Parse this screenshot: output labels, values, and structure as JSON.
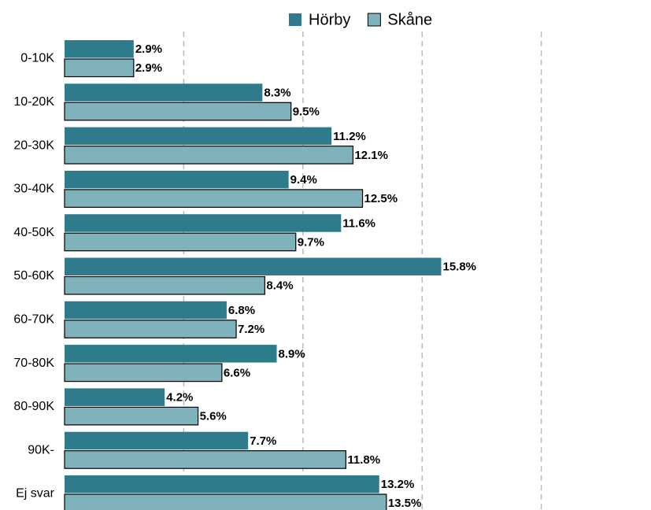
{
  "chart_data": {
    "type": "bar",
    "orientation": "horizontal",
    "categories": [
      "0-10K",
      "10-20K",
      "20-30K",
      "30-40K",
      "40-50K",
      "50-60K",
      "60-70K",
      "70-80K",
      "80-90K",
      "90K-",
      "Ej svar"
    ],
    "series": [
      {
        "name": "Hörby",
        "color": "#2e7b8c",
        "values": [
          2.9,
          8.3,
          11.2,
          9.4,
          11.6,
          15.8,
          6.8,
          8.9,
          4.2,
          7.7,
          13.2
        ],
        "value_labels": [
          "2.9%",
          "8.3%",
          "11.2%",
          "9.4%",
          "11.6%",
          "15.8%",
          "6.8%",
          "8.9%",
          "4.2%",
          "7.7%",
          "13.2%"
        ]
      },
      {
        "name": "Skåne",
        "color": "#7fb2ba",
        "values": [
          2.9,
          9.5,
          12.1,
          12.5,
          9.7,
          8.4,
          7.2,
          6.6,
          5.6,
          11.8,
          13.5
        ],
        "value_labels": [
          "2.9%",
          "9.5%",
          "12.1%",
          "12.5%",
          "9.7%",
          "8.4%",
          "7.2%",
          "6.6%",
          "5.6%",
          "11.8%",
          "13.5%"
        ]
      }
    ],
    "xlim": [
      0,
      24.6
    ],
    "xticks": [
      5,
      10,
      15,
      20
    ],
    "grid": true,
    "legend": "top"
  }
}
